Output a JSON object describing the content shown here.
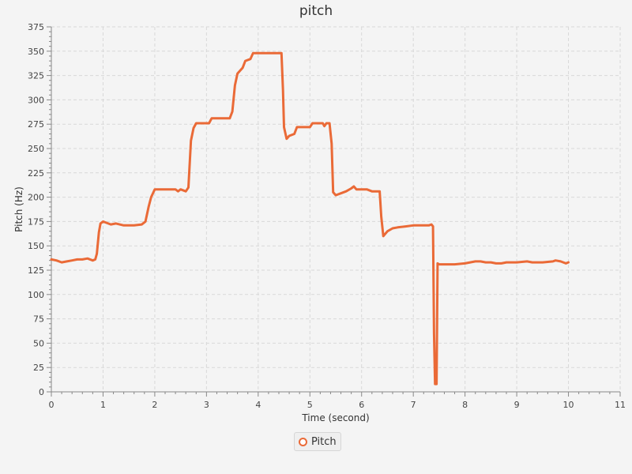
{
  "colors": {
    "series": "#ea6a37",
    "grid": "#d8d8d8",
    "axis": "#888888"
  },
  "chart_data": {
    "type": "line",
    "title": "pitch",
    "xlabel": "Time (second)",
    "ylabel": "Pitch (Hz)",
    "xlim": [
      0,
      11
    ],
    "ylim": [
      0,
      375
    ],
    "xticks": [
      0,
      1,
      2,
      3,
      4,
      5,
      6,
      7,
      8,
      9,
      10,
      11
    ],
    "yticks": [
      0,
      25,
      50,
      75,
      100,
      125,
      150,
      175,
      200,
      225,
      250,
      275,
      300,
      325,
      350,
      375
    ],
    "grid": true,
    "legend_position": "bottom-center",
    "series": [
      {
        "name": "Pitch",
        "points": [
          [
            0.0,
            136
          ],
          [
            0.1,
            135
          ],
          [
            0.2,
            133
          ],
          [
            0.3,
            134
          ],
          [
            0.4,
            135
          ],
          [
            0.5,
            136
          ],
          [
            0.6,
            136
          ],
          [
            0.7,
            137
          ],
          [
            0.8,
            135
          ],
          [
            0.85,
            136
          ],
          [
            0.88,
            142
          ],
          [
            0.92,
            164
          ],
          [
            0.95,
            173
          ],
          [
            1.0,
            175
          ],
          [
            1.05,
            174
          ],
          [
            1.15,
            172
          ],
          [
            1.25,
            173
          ],
          [
            1.4,
            171
          ],
          [
            1.6,
            171
          ],
          [
            1.75,
            172
          ],
          [
            1.82,
            175
          ],
          [
            1.88,
            190
          ],
          [
            1.93,
            200
          ],
          [
            2.0,
            208
          ],
          [
            2.2,
            208
          ],
          [
            2.4,
            208
          ],
          [
            2.45,
            206
          ],
          [
            2.5,
            208
          ],
          [
            2.6,
            206
          ],
          [
            2.65,
            210
          ],
          [
            2.7,
            258
          ],
          [
            2.75,
            271
          ],
          [
            2.8,
            276
          ],
          [
            3.05,
            276
          ],
          [
            3.1,
            281
          ],
          [
            3.45,
            281
          ],
          [
            3.5,
            288
          ],
          [
            3.55,
            315
          ],
          [
            3.6,
            327
          ],
          [
            3.7,
            333
          ],
          [
            3.75,
            340
          ],
          [
            3.85,
            342
          ],
          [
            3.9,
            348
          ],
          [
            4.1,
            348
          ],
          [
            4.3,
            348
          ],
          [
            4.45,
            348
          ],
          [
            4.48,
            310
          ],
          [
            4.5,
            272
          ],
          [
            4.55,
            260
          ],
          [
            4.6,
            263
          ],
          [
            4.7,
            265
          ],
          [
            4.75,
            272
          ],
          [
            5.0,
            272
          ],
          [
            5.05,
            276
          ],
          [
            5.25,
            276
          ],
          [
            5.28,
            273
          ],
          [
            5.32,
            276
          ],
          [
            5.38,
            276
          ],
          [
            5.42,
            255
          ],
          [
            5.45,
            205
          ],
          [
            5.5,
            202
          ],
          [
            5.6,
            204
          ],
          [
            5.7,
            206
          ],
          [
            5.8,
            209
          ],
          [
            5.85,
            211
          ],
          [
            5.9,
            208
          ],
          [
            6.1,
            208
          ],
          [
            6.2,
            206
          ],
          [
            6.35,
            206
          ],
          [
            6.38,
            180
          ],
          [
            6.42,
            160
          ],
          [
            6.5,
            165
          ],
          [
            6.6,
            168
          ],
          [
            6.7,
            169
          ],
          [
            6.85,
            170
          ],
          [
            7.0,
            171
          ],
          [
            7.1,
            171
          ],
          [
            7.2,
            171
          ],
          [
            7.3,
            171
          ],
          [
            7.35,
            172
          ],
          [
            7.38,
            170
          ],
          [
            7.4,
            60
          ],
          [
            7.42,
            8
          ],
          [
            7.45,
            8
          ],
          [
            7.47,
            132
          ],
          [
            7.5,
            131
          ],
          [
            7.6,
            131
          ],
          [
            7.8,
            131
          ],
          [
            8.0,
            132
          ],
          [
            8.1,
            133
          ],
          [
            8.2,
            134
          ],
          [
            8.3,
            134
          ],
          [
            8.4,
            133
          ],
          [
            8.5,
            133
          ],
          [
            8.6,
            132
          ],
          [
            8.7,
            132
          ],
          [
            8.8,
            133
          ],
          [
            9.0,
            133
          ],
          [
            9.2,
            134
          ],
          [
            9.3,
            133
          ],
          [
            9.5,
            133
          ],
          [
            9.7,
            134
          ],
          [
            9.75,
            135
          ],
          [
            9.85,
            134
          ],
          [
            9.9,
            133
          ],
          [
            9.95,
            132
          ],
          [
            10.0,
            133
          ]
        ]
      }
    ]
  }
}
